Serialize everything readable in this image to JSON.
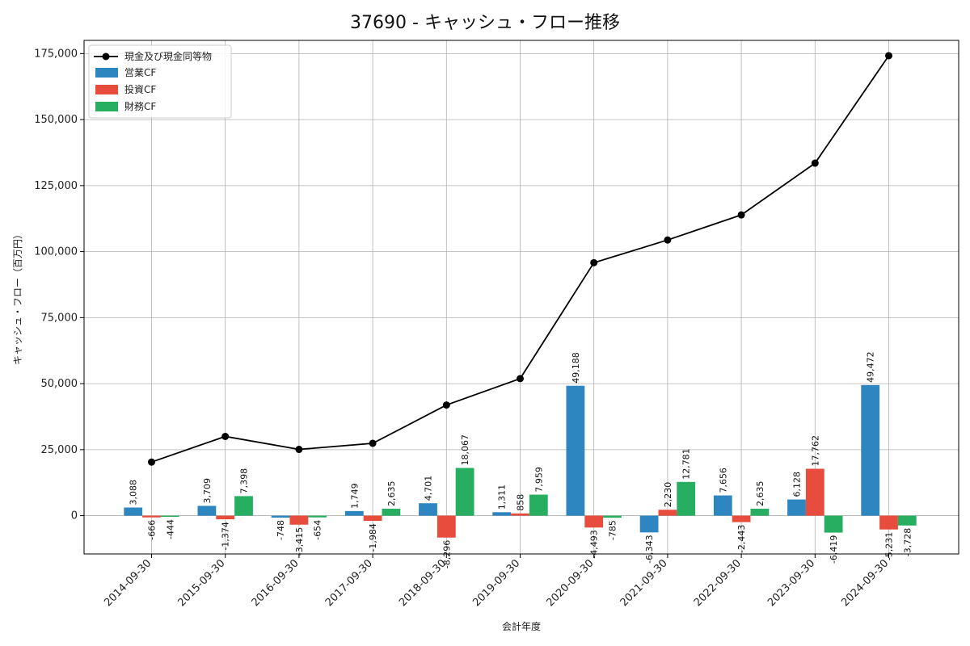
{
  "chart_data": {
    "type": "bar",
    "title": "37690 - キャッシュ・フロー推移",
    "xlabel": "会計年度",
    "ylabel": "キャッシュ・フロー（百万円）",
    "categories": [
      "2014-09-30",
      "2015-09-30",
      "2016-09-30",
      "2017-09-30",
      "2018-09-30",
      "2019-09-30",
      "2020-09-30",
      "2021-09-30",
      "2022-09-30",
      "2023-09-30",
      "2024-09-30"
    ],
    "ylim": [
      -14500,
      180000
    ],
    "yticks": [
      0,
      25000,
      50000,
      75000,
      100000,
      125000,
      150000,
      175000
    ],
    "ytick_labels": [
      "0",
      "25,000",
      "50,000",
      "75,000",
      "100,000",
      "125,000",
      "150,000",
      "175,000"
    ],
    "grid": true,
    "legend_position": "top-left",
    "series": [
      {
        "name": "営業CF",
        "kind": "bar",
        "color": "#2e86c1",
        "values": [
          3088,
          3709,
          -748,
          1749,
          4701,
          1311,
          49188,
          -6343,
          7656,
          6128,
          49472
        ],
        "labels": [
          "3,088",
          "3,709",
          "-748",
          "1,749",
          "4,701",
          "1,311",
          "49,188",
          "-6,343",
          "7,656",
          "6,128",
          "49,472"
        ]
      },
      {
        "name": "投資CF",
        "kind": "bar",
        "color": "#e74c3c",
        "values": [
          -666,
          -1374,
          -3415,
          -1984,
          -8296,
          858,
          -4493,
          2230,
          -2443,
          17762,
          -5231
        ],
        "labels": [
          "-666",
          "-1,374",
          "-3,415",
          "-1,984",
          "-8,296",
          "858",
          "-4,493",
          "2,230",
          "-2,443",
          "17,762",
          "-5,231"
        ]
      },
      {
        "name": "財務CF",
        "kind": "bar",
        "color": "#27ae60",
        "values": [
          -444,
          7398,
          -654,
          2635,
          18067,
          7959,
          -785,
          12781,
          2635,
          -6419,
          -3728
        ],
        "labels": [
          "-444",
          "7,398",
          "-654",
          "2,635",
          "18,067",
          "7,959",
          "-785",
          "12,781",
          "2,635",
          "-6,419",
          "-3,728"
        ]
      },
      {
        "name": "現金及び現金同等物",
        "kind": "line",
        "color": "#000000",
        "values": [
          20300,
          30000,
          25100,
          27400,
          41900,
          51900,
          95800,
          104400,
          113900,
          133500,
          174200
        ]
      }
    ]
  }
}
